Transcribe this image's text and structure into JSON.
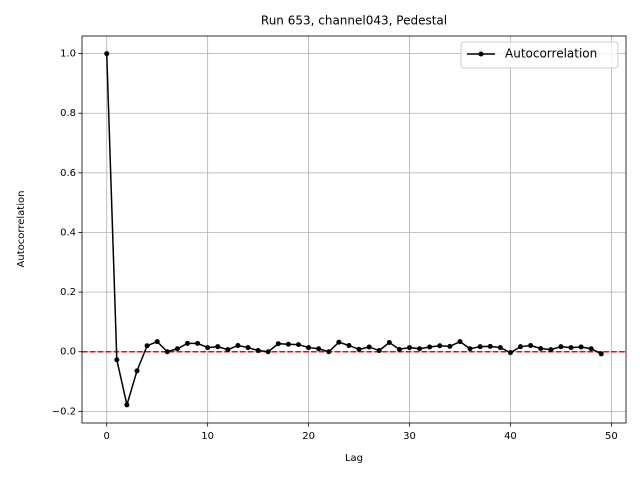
{
  "chart_data": {
    "type": "line",
    "title": "Run 653, channel043, Pedestal",
    "xlabel": "Lag",
    "ylabel": "Autocorrelation",
    "x": [
      0,
      1,
      2,
      3,
      4,
      5,
      6,
      7,
      8,
      9,
      10,
      11,
      12,
      13,
      14,
      15,
      16,
      17,
      18,
      19,
      20,
      21,
      22,
      23,
      24,
      25,
      26,
      27,
      28,
      29,
      30,
      31,
      32,
      33,
      34,
      35,
      36,
      37,
      38,
      39,
      40,
      41,
      42,
      43,
      44,
      45,
      46,
      47,
      48,
      49
    ],
    "series": [
      {
        "name": "Autocorrelation",
        "color": "#000000",
        "marker": "circle",
        "values": [
          1.0,
          -0.027,
          -0.178,
          -0.064,
          0.02,
          0.034,
          0.0,
          0.01,
          0.028,
          0.028,
          0.014,
          0.017,
          0.007,
          0.021,
          0.014,
          0.004,
          0.0,
          0.027,
          0.025,
          0.024,
          0.014,
          0.01,
          0.0,
          0.032,
          0.021,
          0.008,
          0.016,
          0.004,
          0.031,
          0.008,
          0.014,
          0.01,
          0.016,
          0.02,
          0.018,
          0.034,
          0.01,
          0.017,
          0.018,
          0.014,
          -0.003,
          0.017,
          0.021,
          0.011,
          0.007,
          0.017,
          0.014,
          0.016,
          0.01,
          -0.007
        ]
      }
    ],
    "hlines": [
      {
        "y": 0,
        "color": "#ff0000",
        "style": "dashed"
      }
    ],
    "xlim": [
      -2.45,
      51.45
    ],
    "xticks": [
      0,
      10,
      20,
      30,
      40,
      50
    ],
    "ylim": [
      -0.239,
      1.059
    ],
    "yticks": [
      {
        "value": -0.2,
        "label": "−0.2"
      },
      {
        "value": 0,
        "label": "0.0"
      },
      {
        "value": 0.2,
        "label": "0.2"
      },
      {
        "value": 0.4,
        "label": "0.4"
      },
      {
        "value": 0.6,
        "label": "0.6"
      },
      {
        "value": 0.8,
        "label": "0.8"
      },
      {
        "value": 1.0,
        "label": "1.0"
      }
    ],
    "grid": true,
    "legend": "upper right"
  }
}
